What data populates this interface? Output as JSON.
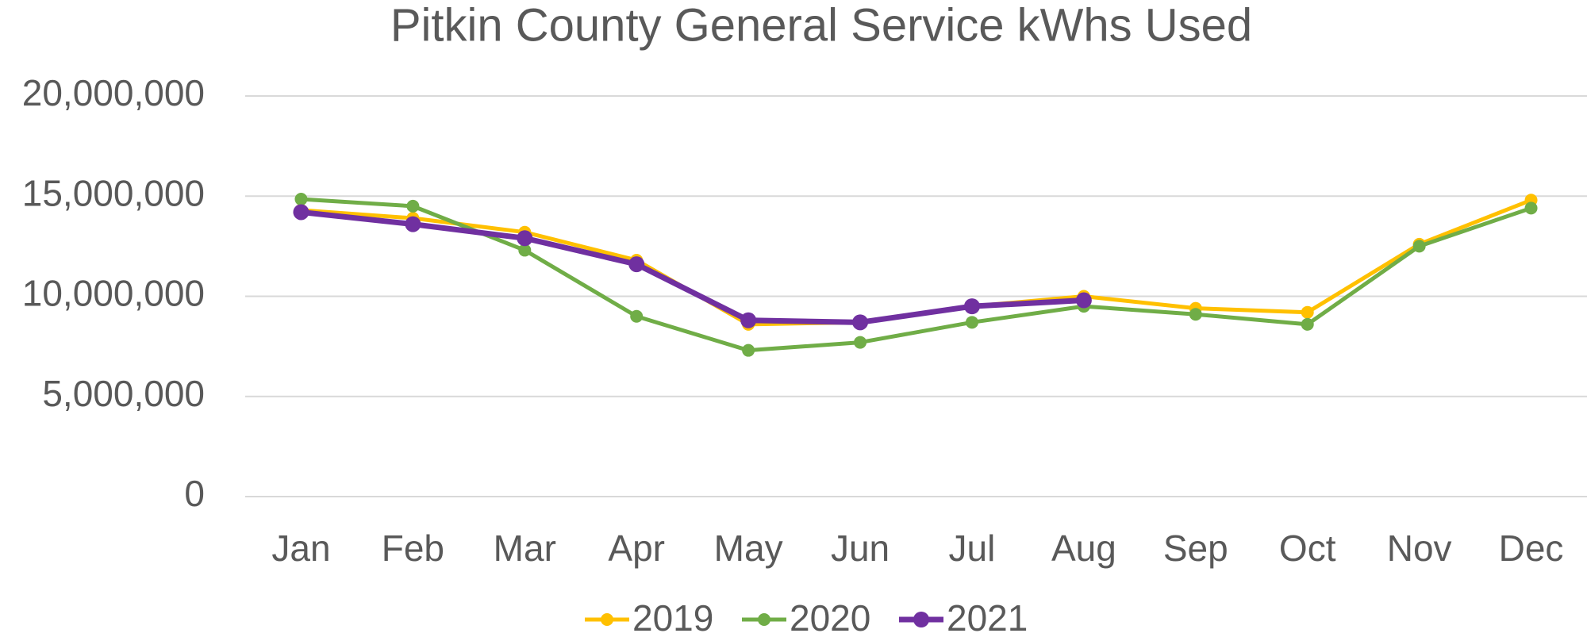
{
  "chart_data": {
    "type": "line",
    "title": "Pitkin County General Service kWhs Used",
    "categories": [
      "Jan",
      "Feb",
      "Mar",
      "Apr",
      "May",
      "Jun",
      "Jul",
      "Aug",
      "Sep",
      "Oct",
      "Nov",
      "Dec"
    ],
    "series": [
      {
        "name": "2019",
        "color": "#ffc000",
        "values": [
          14300000,
          13900000,
          13200000,
          11800000,
          8600000,
          8700000,
          9500000,
          10000000,
          9400000,
          9200000,
          12600000,
          14800000
        ]
      },
      {
        "name": "2020",
        "color": "#70ad47",
        "values": [
          14850000,
          14500000,
          12300000,
          9000000,
          7300000,
          7700000,
          8700000,
          9500000,
          9100000,
          8600000,
          12500000,
          14400000
        ]
      },
      {
        "name": "2021",
        "color": "#7030a0",
        "values": [
          14200000,
          13600000,
          12900000,
          11600000,
          8800000,
          8700000,
          9500000,
          9800000,
          null,
          null,
          null,
          null
        ]
      }
    ],
    "ylim": [
      0,
      20000000
    ],
    "yticks": [
      0,
      {
        "value": 5000000,
        "label": "5,000,000"
      },
      {
        "value": 10000000,
        "label": "10,000,000"
      },
      {
        "value": 15000000,
        "label": "15,000,000"
      },
      {
        "value": 20000000,
        "label": "20,000,000"
      }
    ],
    "grid": true,
    "legend": "bottom"
  }
}
